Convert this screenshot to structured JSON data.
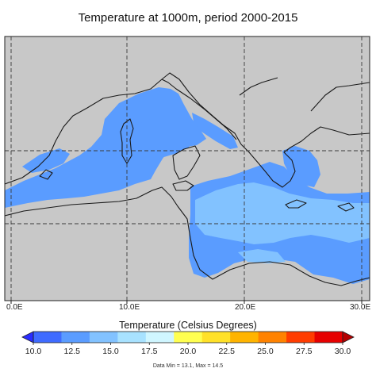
{
  "title": "Temperature at 1000m, period 2000-2015",
  "map": {
    "longitude_labels": [
      "0.0E",
      "10.0E",
      "20.0E",
      "30.0E"
    ],
    "land_color": "#c8c8c8",
    "coastline_color": "#1a1a1a",
    "gridline_color": "#3a3a3a",
    "gridline_style": "dashed",
    "field_colors": {
      "class_12_5_15": "#5a9cff",
      "class_15_17_5": "#82c2ff"
    }
  },
  "colorbar": {
    "title": "Temperature (Celsius Degrees)",
    "tick_labels": [
      "10.0",
      "12.5",
      "15.0",
      "17.5",
      "20.0",
      "22.5",
      "25.0",
      "27.5",
      "30.0"
    ],
    "colors": [
      "#2a2cff",
      "#3f6bff",
      "#5a9cff",
      "#82c2ff",
      "#a8e2ff",
      "#d0f6ff",
      "#ffff50",
      "#ffe128",
      "#ffb400",
      "#ff8200",
      "#ff3c00",
      "#e60000",
      "#b40000"
    ],
    "stats": "Data Min = 13.1, Max = 14.5"
  }
}
